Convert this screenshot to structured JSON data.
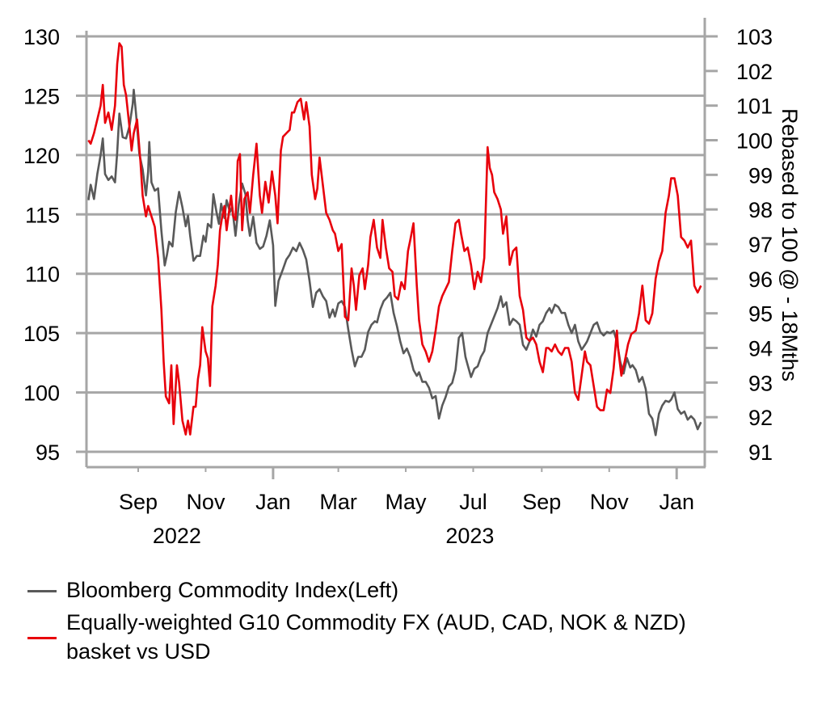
{
  "chart_data": {
    "type": "line",
    "title": "",
    "xlabel": "",
    "ylabel_left": "",
    "ylabel_right": "Rebased to 100 @ - 18Mths",
    "base_date": "2022-09-01",
    "x_unit": "days since base_date",
    "ylim_left": [
      94,
      131
    ],
    "ylim_right": [
      90.6,
      103.4
    ],
    "left_ticks": [
      "95",
      "100",
      "105",
      "110",
      "115",
      "120",
      "125",
      "130"
    ],
    "left_tick_values": [
      95,
      100,
      105,
      110,
      115,
      120,
      125,
      130
    ],
    "right_ticks": [
      "91",
      "92",
      "93",
      "94",
      "95",
      "96",
      "97",
      "98",
      "99",
      "100",
      "101",
      "102",
      "103"
    ],
    "right_tick_values": [
      91,
      92,
      93,
      94,
      95,
      96,
      97,
      98,
      99,
      100,
      101,
      102,
      103
    ],
    "x_ticks": [
      {
        "label": "Sep",
        "day": 0,
        "major": false
      },
      {
        "label": "Nov",
        "day": 61,
        "major": false
      },
      {
        "label": "Jan",
        "day": 122,
        "major": true
      },
      {
        "label": "Mar",
        "day": 181,
        "major": false
      },
      {
        "label": "May",
        "day": 242,
        "major": false
      },
      {
        "label": "Jul",
        "day": 303,
        "major": false
      },
      {
        "label": "Sep",
        "day": 365,
        "major": false
      },
      {
        "label": "Nov",
        "day": 426,
        "major": false
      },
      {
        "label": "Jan",
        "day": 487,
        "major": true
      }
    ],
    "year_labels": [
      {
        "label": "2022",
        "day": 35
      },
      {
        "label": "2023",
        "day": 300
      }
    ],
    "x_range_days": [
      -47,
      515
    ],
    "grid": true,
    "legend_position": "bottom",
    "series": [
      {
        "name": "Bloomberg Commodity Index(Left)",
        "axis": "left",
        "color": "#595959",
        "days": [
          -45,
          -43,
          -40,
          -37,
          -34,
          -32,
          -30,
          -27,
          -24,
          -21,
          -19,
          -17,
          -14,
          -11,
          -8,
          -5,
          -4,
          -2,
          1,
          4,
          7,
          9,
          10,
          12,
          15,
          18,
          21,
          24,
          26,
          28,
          31,
          34,
          37,
          40,
          43,
          45,
          47,
          50,
          53,
          56,
          59,
          61,
          63,
          66,
          68,
          71,
          73,
          75,
          78,
          80,
          83,
          85,
          88,
          91,
          94,
          97,
          99,
          101,
          104,
          107,
          110,
          113,
          116,
          119,
          122,
          124,
          127,
          131,
          134,
          137,
          140,
          143,
          146,
          149,
          152,
          155,
          158,
          161,
          164,
          167,
          170,
          173,
          176,
          178,
          181,
          184,
          187,
          190,
          193,
          196,
          199,
          202,
          205,
          208,
          211,
          214,
          216,
          219,
          222,
          225,
          228,
          231,
          234,
          237,
          240,
          243,
          246,
          249,
          252,
          254,
          257,
          260,
          263,
          266,
          269,
          272,
          275,
          278,
          281,
          284,
          287,
          290,
          293,
          296,
          298,
          301,
          304,
          307,
          310,
          313,
          316,
          319,
          322,
          325,
          328,
          330,
          333,
          336,
          339,
          342,
          345,
          348,
          351,
          354,
          357,
          360,
          363,
          366,
          369,
          372,
          374,
          377,
          380,
          383,
          386,
          389,
          392,
          395,
          398,
          401,
          404,
          406,
          409,
          412,
          415,
          418,
          421,
          424,
          427,
          430,
          433,
          436,
          439,
          442,
          445,
          447,
          450,
          453,
          456,
          459,
          462,
          465,
          468,
          471,
          474,
          477,
          480,
          482,
          485,
          488,
          491,
          494,
          497,
          500,
          503,
          506,
          509,
          512
        ],
        "values": [
          116.2,
          117.5,
          116.3,
          118.4,
          120.0,
          121.4,
          118.4,
          117.9,
          118.2,
          117.7,
          120.2,
          123.5,
          121.5,
          121.4,
          122.4,
          124.3,
          125.5,
          123.5,
          120.1,
          118.8,
          116.6,
          118.6,
          121.1,
          117.7,
          117.0,
          117.2,
          113.6,
          110.7,
          111.6,
          112.7,
          112.3,
          115.2,
          116.9,
          115.6,
          114.0,
          114.9,
          113.2,
          111.1,
          111.5,
          111.5,
          113.2,
          112.7,
          114.2,
          113.9,
          116.7,
          115.1,
          114.2,
          115.9,
          114.7,
          116.2,
          115.2,
          115.6,
          113.2,
          115.9,
          117.6,
          116.7,
          114.5,
          113.2,
          114.8,
          112.6,
          112.1,
          112.3,
          113.2,
          114.5,
          112.4,
          107.3,
          109.4,
          110.4,
          111.2,
          111.6,
          112.2,
          111.9,
          112.6,
          112.0,
          111.2,
          109.4,
          107.2,
          108.4,
          108.7,
          108.1,
          107.7,
          106.3,
          107.0,
          106.4,
          107.5,
          107.7,
          107.2,
          105.3,
          103.6,
          102.2,
          103.0,
          103.0,
          103.6,
          105.1,
          105.7,
          106.0,
          105.9,
          107.0,
          107.7,
          108.0,
          108.4,
          106.7,
          105.6,
          104.3,
          103.3,
          103.7,
          103.0,
          101.9,
          101.4,
          101.7,
          100.9,
          100.9,
          100.4,
          99.5,
          99.7,
          97.8,
          98.9,
          99.6,
          100.5,
          100.8,
          101.9,
          104.6,
          105.0,
          103.0,
          102.3,
          101.3,
          102.0,
          102.2,
          103.0,
          103.5,
          105.0,
          105.7,
          106.4,
          107.1,
          108.1,
          107.2,
          107.6,
          105.7,
          106.2,
          106.0,
          105.7,
          104.0,
          103.6,
          104.3,
          105.3,
          104.7,
          105.7,
          106.0,
          106.7,
          107.1,
          106.7,
          107.4,
          107.2,
          106.7,
          106.7,
          105.7,
          105.0,
          105.7,
          104.3,
          103.6,
          104.0,
          104.3,
          105.0,
          105.7,
          105.9,
          105.1,
          104.8,
          105.1,
          105.0,
          105.2,
          104.3,
          102.6,
          101.6,
          102.9,
          102.1,
          102.3,
          101.9,
          100.9,
          101.3,
          100.3,
          98.2,
          97.8,
          96.4,
          98.2,
          98.9,
          99.3,
          99.2,
          99.4,
          100.0,
          98.6,
          98.2,
          98.4,
          97.7,
          98.0,
          97.7,
          96.9,
          97.5
        ]
      },
      {
        "name": "Equally-weighted G10 Commodity FX (AUD, CAD, NOK & NZD) basket vs USD",
        "axis": "right",
        "color": "#e8000b",
        "days": [
          -45,
          -43,
          -40,
          -37,
          -34,
          -32,
          -30,
          -27,
          -24,
          -21,
          -19,
          -17,
          -15,
          -13,
          -11,
          -8,
          -6,
          -4,
          -1,
          2,
          4,
          7,
          9,
          12,
          15,
          18,
          21,
          23,
          25,
          28,
          30,
          32,
          35,
          37,
          40,
          43,
          45,
          47,
          50,
          52,
          54,
          56,
          58,
          61,
          63,
          65,
          67,
          70,
          72,
          74,
          76,
          78,
          80,
          82,
          84,
          86,
          88,
          90,
          92,
          94,
          96,
          99,
          101,
          104,
          107,
          110,
          112,
          115,
          118,
          121,
          124,
          126,
          129,
          131,
          134,
          137,
          139,
          141,
          144,
          147,
          150,
          152,
          155,
          157,
          160,
          162,
          164,
          167,
          170,
          173,
          176,
          178,
          181,
          184,
          187,
          190,
          193,
          195,
          197,
          200,
          203,
          205,
          208,
          210,
          213,
          216,
          219,
          221,
          224,
          227,
          230,
          232,
          235,
          238,
          241,
          244,
          246,
          249,
          252,
          254,
          257,
          260,
          263,
          266,
          269,
          272,
          275,
          278,
          281,
          284,
          287,
          290,
          292,
          295,
          298,
          301,
          304,
          307,
          310,
          313,
          316,
          318,
          320,
          322,
          325,
          328,
          330,
          333,
          336,
          339,
          342,
          345,
          348,
          351,
          354,
          357,
          360,
          363,
          366,
          369,
          371,
          374,
          377,
          380,
          383,
          386,
          389,
          392,
          395,
          398,
          401,
          404,
          406,
          409,
          412,
          415,
          418,
          421,
          424,
          427,
          430,
          433,
          434,
          437,
          440,
          443,
          446,
          450,
          453,
          456,
          459,
          462,
          465,
          468,
          471,
          474,
          477,
          480,
          482,
          485,
          488,
          491,
          494,
          497,
          500,
          503,
          506,
          509,
          512
        ],
        "values": [
          100.0,
          99.9,
          100.2,
          100.6,
          101.0,
          101.6,
          100.5,
          100.8,
          100.3,
          101.0,
          102.2,
          102.8,
          102.7,
          101.6,
          101.3,
          100.4,
          99.7,
          100.2,
          100.6,
          99.4,
          98.4,
          97.8,
          98.1,
          97.8,
          97.5,
          96.6,
          95.1,
          93.6,
          92.6,
          92.4,
          93.5,
          91.8,
          93.5,
          93.0,
          91.9,
          91.5,
          91.9,
          91.5,
          92.3,
          92.3,
          93.1,
          93.5,
          94.6,
          93.9,
          93.7,
          92.9,
          95.2,
          95.8,
          96.4,
          97.4,
          97.8,
          98.1,
          97.4,
          97.9,
          98.4,
          97.8,
          97.7,
          99.4,
          99.6,
          97.4,
          98.3,
          98.5,
          97.9,
          99.0,
          99.9,
          98.4,
          97.9,
          98.8,
          98.2,
          99.1,
          98.4,
          97.6,
          99.7,
          100.1,
          100.2,
          100.3,
          100.8,
          100.8,
          101.1,
          101.2,
          100.6,
          101.1,
          100.4,
          99.0,
          98.3,
          98.6,
          99.5,
          98.7,
          97.9,
          97.7,
          97.4,
          97.3,
          96.8,
          97.0,
          94.9,
          94.8,
          96.3,
          95.8,
          95.1,
          96.1,
          96.3,
          95.7,
          96.4,
          97.2,
          97.7,
          96.9,
          96.6,
          97.7,
          96.9,
          96.3,
          96.2,
          95.5,
          95.4,
          95.9,
          95.7,
          96.8,
          97.1,
          97.6,
          95.8,
          94.8,
          94.1,
          93.9,
          93.6,
          93.9,
          94.5,
          95.2,
          95.5,
          95.7,
          95.9,
          96.8,
          97.6,
          97.7,
          97.3,
          96.8,
          96.9,
          96.4,
          95.7,
          96.2,
          95.9,
          96.6,
          99.8,
          99.2,
          99.0,
          98.5,
          98.3,
          98.0,
          97.3,
          97.8,
          96.4,
          96.8,
          96.9,
          95.5,
          95.1,
          94.3,
          94.2,
          94.3,
          94.1,
          93.6,
          93.3,
          94.0,
          94.0,
          93.9,
          94.1,
          93.9,
          93.8,
          94.0,
          94.0,
          93.6,
          92.7,
          92.5,
          93.2,
          93.9,
          93.6,
          93.5,
          92.9,
          92.3,
          92.2,
          92.2,
          92.8,
          92.7,
          93.4,
          94.5,
          94.0,
          93.2,
          93.6,
          94.1,
          94.4,
          94.5,
          95.0,
          95.8,
          94.8,
          94.7,
          95.0,
          96.0,
          96.5,
          96.8,
          97.9,
          98.4,
          98.9,
          98.9,
          98.4,
          97.2,
          97.1,
          96.9,
          97.1,
          95.8,
          95.6,
          95.8
        ]
      }
    ]
  },
  "legend": {
    "items": [
      {
        "label": "Bloomberg Commodity Index(Left)",
        "color": "#595959"
      },
      {
        "label_line1": "Equally-weighted G10 Commodity FX (AUD, CAD, NOK & NZD)",
        "label_line2": "basket vs USD",
        "color": "#e8000b"
      }
    ]
  }
}
